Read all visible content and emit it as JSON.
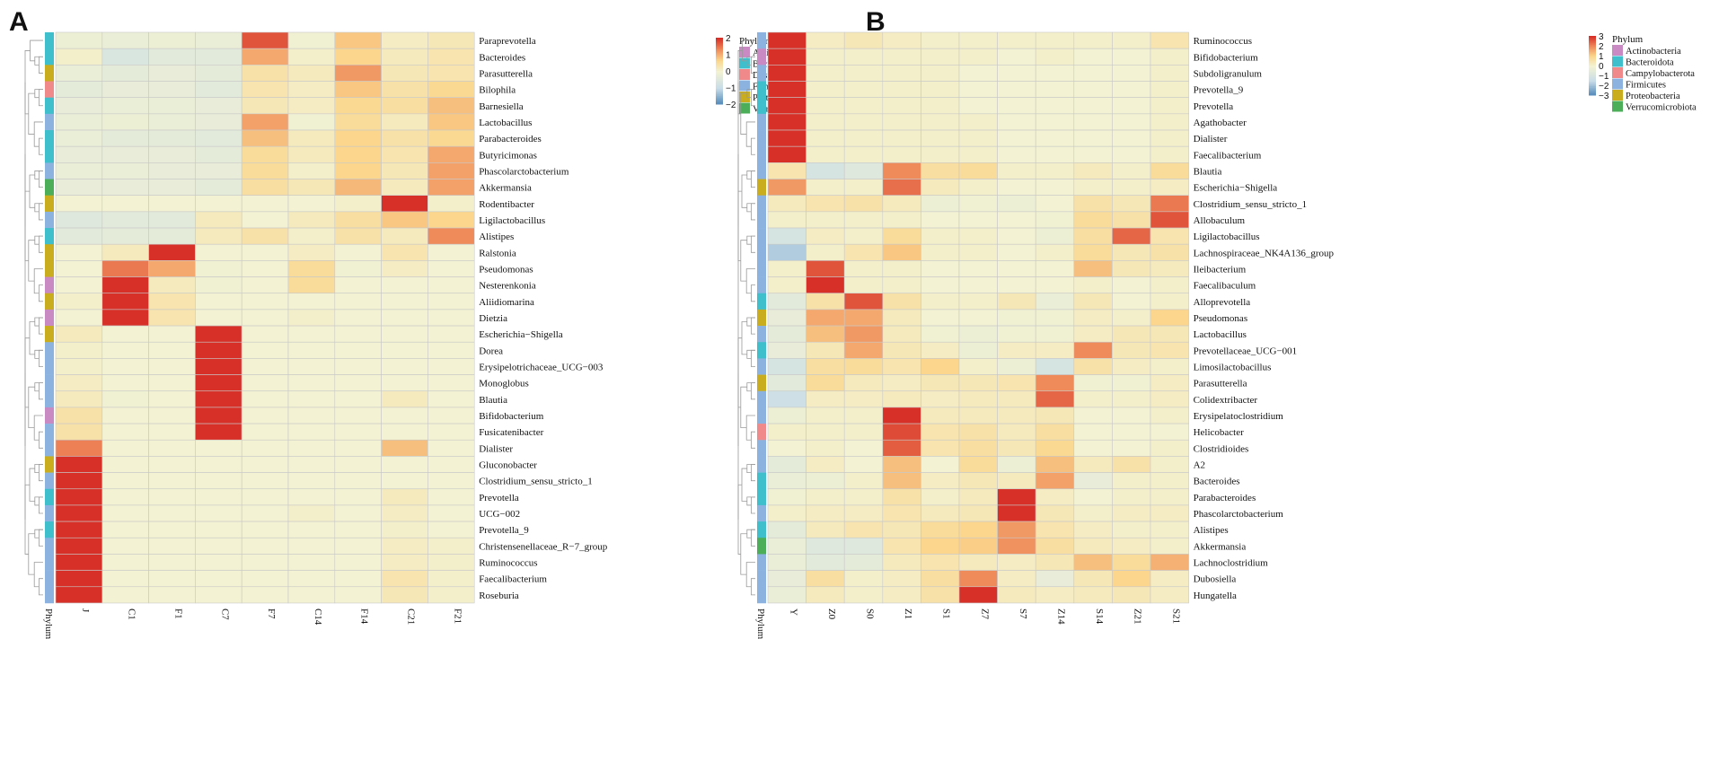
{
  "palette": {
    "low": "#4f86b7",
    "mid_low": "#c8dde8",
    "mid": "#f3f2d2",
    "mid_high": "#fbd68c",
    "high_mid": "#ef8a5a",
    "high": "#d73028",
    "grid": "#c8c8c8",
    "dendro": "#9a9a9a"
  },
  "phylum_colors": {
    "Actinobacteria": "#c98ac3",
    "Bacteroidota": "#3fbfcb",
    "Desulfobacterota": "#f08a8a",
    "Campylobacterota": "#f08a8a",
    "Firmicutes": "#8cb3e0",
    "Proteobacteria": "#c9ad1e",
    "Verrucomicrobiota": "#4cae58"
  },
  "chart_data": [
    {
      "panel": "A",
      "type": "heatmap",
      "phylum_axis_label": "Phylum",
      "columns": [
        "J",
        "C1",
        "F1",
        "C7",
        "F7",
        "C14",
        "F14",
        "C21",
        "F21"
      ],
      "legend": {
        "title": "Phylum",
        "scale_ticks": [
          "2",
          "1",
          "0",
          "−1",
          "−2"
        ],
        "scale_values": [
          2,
          1,
          0,
          -1,
          -2
        ],
        "entries": [
          "Actinobacteria",
          "Bacteroidota",
          "Desulfobacterota",
          "Firmicutes",
          "Proteobacteria",
          "Verrucomicrobiota"
        ],
        "phyla_keys": [
          "Actinobacteria",
          "Bacteroidota",
          "Desulfobacterota",
          "Firmicutes",
          "Proteobacteria",
          "Verrucomicrobiota"
        ]
      },
      "rows": [
        "Paraprevotella",
        "Bacteroides",
        "Parasutterella",
        "Bilophila",
        "Barnesiella",
        "Lactobacillus",
        "Parabacteroides",
        "Butyricimonas",
        "Phascolarctobacterium",
        "Akkermansia",
        "Rodentibacter",
        "Ligilactobacillus",
        "Alistipes",
        "Ralstonia",
        "Pseudomonas",
        "Nesterenkonia",
        "Aliidiomarina",
        "Dietzia",
        "Escherichia−Shigella",
        "Dorea",
        "Erysipelotrichaceae_UCG−003",
        "Monoglobus",
        "Blautia",
        "Bifidobacterium",
        "Fusicatenibacter",
        "Dialister",
        "Gluconobacter",
        "Clostridium_sensu_stricto_1",
        "Prevotella",
        "UCG−002",
        "Prevotella_9",
        "Christensenellaceae_R−7_group",
        "Ruminococcus",
        "Faecalibacterium",
        "Roseburia"
      ],
      "row_phyla": [
        "Bacteroidota",
        "Bacteroidota",
        "Proteobacteria",
        "Desulfobacterota",
        "Bacteroidota",
        "Firmicutes",
        "Bacteroidota",
        "Bacteroidota",
        "Firmicutes",
        "Verrucomicrobiota",
        "Proteobacteria",
        "Firmicutes",
        "Bacteroidota",
        "Proteobacteria",
        "Proteobacteria",
        "Actinobacteria",
        "Proteobacteria",
        "Actinobacteria",
        "Proteobacteria",
        "Firmicutes",
        "Firmicutes",
        "Firmicutes",
        "Firmicutes",
        "Actinobacteria",
        "Firmicutes",
        "Firmicutes",
        "Proteobacteria",
        "Firmicutes",
        "Bacteroidota",
        "Firmicutes",
        "Bacteroidota",
        "Firmicutes",
        "Firmicutes",
        "Firmicutes",
        "Firmicutes"
      ],
      "values": [
        [
          -0.2,
          -0.3,
          -0.2,
          -0.3,
          2.6,
          -0.1,
          1.2,
          0.2,
          0.4
        ],
        [
          0.1,
          -0.9,
          -0.6,
          -0.6,
          1.6,
          0.1,
          1.0,
          0.3,
          0.5
        ],
        [
          -0.3,
          -0.5,
          -0.4,
          -0.5,
          0.6,
          0.3,
          1.8,
          0.4,
          0.5
        ],
        [
          -0.5,
          -0.4,
          -0.4,
          -0.6,
          0.5,
          0.2,
          1.2,
          0.6,
          0.9
        ],
        [
          -0.4,
          -0.3,
          -0.3,
          -0.4,
          0.4,
          0.2,
          0.9,
          0.7,
          1.3
        ],
        [
          -0.3,
          -0.2,
          -0.3,
          -0.4,
          1.7,
          -0.1,
          0.8,
          0.3,
          1.2
        ],
        [
          -0.3,
          -0.5,
          -0.5,
          -0.6,
          1.3,
          0.3,
          1.0,
          0.6,
          0.9
        ],
        [
          -0.4,
          -0.4,
          -0.4,
          -0.5,
          0.8,
          0.3,
          1.0,
          0.5,
          1.6
        ],
        [
          -0.3,
          -0.3,
          -0.4,
          -0.4,
          0.8,
          0.1,
          1.0,
          0.4,
          1.7
        ],
        [
          -0.4,
          -0.4,
          -0.4,
          -0.5,
          0.7,
          0.4,
          1.4,
          0.3,
          1.7
        ],
        [
          0,
          0,
          0,
          0,
          0,
          0,
          0.1,
          3.0,
          0.1
        ],
        [
          -0.7,
          -0.6,
          -0.6,
          0.3,
          0,
          0.3,
          0.7,
          1.2,
          1.0
        ],
        [
          -0.6,
          -0.5,
          -0.5,
          0.3,
          0.6,
          0.1,
          0.6,
          0.3,
          2.0
        ],
        [
          0,
          0.3,
          3.0,
          0,
          0,
          0.2,
          0,
          0.5,
          0
        ],
        [
          0,
          2.2,
          1.6,
          -0.1,
          0,
          0.8,
          -0.1,
          0.2,
          0
        ],
        [
          0,
          3.0,
          0.3,
          -0.1,
          0,
          0.8,
          0,
          0,
          0
        ],
        [
          0.1,
          3.0,
          0.5,
          0,
          0,
          0,
          0,
          0,
          0
        ],
        [
          0,
          3.0,
          0.5,
          0,
          0,
          0.1,
          0,
          0,
          0
        ],
        [
          0.3,
          0,
          0,
          3.0,
          0,
          0,
          0,
          0,
          0
        ],
        [
          0.1,
          0,
          0,
          3.0,
          0,
          0,
          0,
          0,
          0
        ],
        [
          0.1,
          0,
          0,
          3.0,
          0,
          0,
          0,
          0,
          0
        ],
        [
          0.2,
          0,
          0,
          3.0,
          0,
          0,
          0,
          0,
          0
        ],
        [
          0.3,
          -0.1,
          0,
          3.0,
          0,
          0,
          0,
          0.3,
          0
        ],
        [
          0.6,
          0,
          0,
          3.0,
          0,
          0,
          0,
          0,
          0
        ],
        [
          0.6,
          0,
          0,
          3.0,
          0,
          0,
          0,
          0,
          0
        ],
        [
          2.1,
          0,
          0,
          0,
          0,
          0,
          0,
          1.3,
          0
        ],
        [
          3.0,
          0,
          0,
          0,
          0,
          0,
          0,
          0,
          0
        ],
        [
          3.0,
          0,
          0,
          0,
          0,
          0,
          0,
          0,
          0
        ],
        [
          3.0,
          0,
          0,
          0,
          0,
          0,
          0,
          0.3,
          0
        ],
        [
          3.0,
          0,
          0,
          0,
          0,
          0.1,
          0,
          0.2,
          0
        ],
        [
          3.0,
          0,
          0,
          0,
          0,
          0,
          0,
          0.1,
          0
        ],
        [
          3.0,
          0,
          0,
          0,
          0,
          0,
          0,
          0.2,
          0.1
        ],
        [
          3.0,
          0,
          0,
          0,
          0,
          0,
          0,
          0.2,
          0.1
        ],
        [
          3.0,
          0,
          0,
          0,
          0,
          0,
          0,
          0.5,
          0.1
        ],
        [
          3.0,
          0,
          0,
          0,
          0,
          0,
          0,
          0.4,
          0.1
        ]
      ]
    },
    {
      "panel": "B",
      "type": "heatmap",
      "phylum_axis_label": "Phylum",
      "columns": [
        "Y",
        "Z0",
        "S0",
        "Z1",
        "S1",
        "Z7",
        "S7",
        "Z14",
        "S14",
        "Z21",
        "S21"
      ],
      "legend": {
        "title": "Phylum",
        "scale_ticks": [
          "3",
          "2",
          "1",
          "0",
          "−1",
          "−2",
          "−3"
        ],
        "scale_values": [
          3,
          2,
          1,
          0,
          -1,
          -2,
          -3
        ],
        "entries": [
          "Actinobacteria",
          "Bacteroidota",
          "Campylobacterota",
          "Firmicutes",
          "Proteobacteria",
          "Verrucomicrobiota"
        ],
        "phyla_keys": [
          "Actinobacteria",
          "Bacteroidota",
          "Campylobacterota",
          "Firmicutes",
          "Proteobacteria",
          "Verrucomicrobiota"
        ]
      },
      "rows": [
        "Ruminococcus",
        "Bifidobacterium",
        "Subdoligranulum",
        "Prevotella_9",
        "Prevotella",
        "Agathobacter",
        "Dialister",
        "Faecalibacterium",
        "Blautia",
        "Escherichia−Shigella",
        "Clostridium_sensu_stricto_1",
        "Allobaculum",
        "Ligilactobacillus",
        "Lachnospiraceae_NK4A136_group",
        "Ileibacterium",
        "Faecalibaculum",
        "Alloprevotella",
        "Pseudomonas",
        "Lactobacillus",
        "Prevotellaceae_UCG−001",
        "Limosilactobacillus",
        "Parasutterella",
        "Colidextribacter",
        "Erysipelatoclostridium",
        "Helicobacter",
        "Clostridioides",
        "A2",
        "Bacteroides",
        "Parabacteroides",
        "Phascolarctobacterium",
        "Alistipes",
        "Akkermansia",
        "Lachnoclostridium",
        "Dubosiella",
        "Hungatella"
      ],
      "row_phyla": [
        "Firmicutes",
        "Actinobacteria",
        "Firmicutes",
        "Bacteroidota",
        "Bacteroidota",
        "Firmicutes",
        "Firmicutes",
        "Firmicutes",
        "Firmicutes",
        "Proteobacteria",
        "Firmicutes",
        "Firmicutes",
        "Firmicutes",
        "Firmicutes",
        "Firmicutes",
        "Firmicutes",
        "Bacteroidota",
        "Proteobacteria",
        "Firmicutes",
        "Bacteroidota",
        "Firmicutes",
        "Proteobacteria",
        "Firmicutes",
        "Firmicutes",
        "Campylobacterota",
        "Firmicutes",
        "Firmicutes",
        "Bacteroidota",
        "Bacteroidota",
        "Firmicutes",
        "Bacteroidota",
        "Verrucomicrobiota",
        "Firmicutes",
        "Firmicutes",
        "Firmicutes"
      ],
      "values": [
        [
          3.0,
          0.2,
          0.4,
          0.2,
          0.1,
          0.1,
          0.1,
          0.1,
          0.1,
          0.1,
          0.5
        ],
        [
          3.0,
          0.1,
          0.1,
          0.1,
          0.1,
          0.1,
          0,
          0.1,
          0,
          0,
          0.1
        ],
        [
          3.0,
          0.1,
          0.1,
          0.1,
          0.1,
          0,
          0,
          0,
          0,
          0,
          0.1
        ],
        [
          3.0,
          0.1,
          0.1,
          0.1,
          0.1,
          0,
          0,
          0,
          0,
          0,
          0.1
        ],
        [
          3.0,
          0.1,
          0.1,
          0.1,
          0.1,
          0,
          0,
          0,
          0,
          0,
          0.1
        ],
        [
          3.0,
          0.1,
          0.1,
          0.1,
          0.1,
          0.1,
          0,
          0,
          0,
          0,
          0.1
        ],
        [
          3.0,
          0.1,
          0.1,
          0.1,
          0.1,
          0.1,
          0,
          0,
          0,
          0,
          0.1
        ],
        [
          3.0,
          0.1,
          0.1,
          0.1,
          0.1,
          0.1,
          0,
          0,
          0,
          0,
          0.1
        ],
        [
          0.5,
          -1.0,
          -0.7,
          2.0,
          0.7,
          0.8,
          0.1,
          0.1,
          0.3,
          0.1,
          0.8
        ],
        [
          1.8,
          0.1,
          0.1,
          2.3,
          0.3,
          0.1,
          0,
          0,
          0.1,
          0.1,
          0.2
        ],
        [
          0.3,
          0.5,
          0.6,
          0.3,
          -0.2,
          -0.1,
          -0.2,
          0,
          0.6,
          0.4,
          2.2
        ],
        [
          0.1,
          0.1,
          0.1,
          0.1,
          0,
          0,
          0,
          -0.1,
          0.8,
          0.6,
          2.6
        ],
        [
          -1.0,
          0.2,
          0.1,
          0.8,
          0.1,
          0.1,
          0,
          -0.2,
          0.7,
          2.4,
          0.5
        ],
        [
          -1.8,
          0.1,
          0.5,
          1.2,
          0.1,
          0.1,
          0,
          0.1,
          0.8,
          0.4,
          0.6
        ],
        [
          0.1,
          2.6,
          0.1,
          0.1,
          0,
          0,
          0,
          0,
          1.3,
          0.4,
          0.3
        ],
        [
          0.1,
          3.0,
          0.1,
          0.1,
          0,
          0,
          0,
          0,
          0.1,
          0,
          0.1
        ],
        [
          -0.6,
          0.6,
          2.6,
          0.6,
          0.1,
          0.1,
          0.4,
          -0.3,
          0.4,
          0,
          0.1
        ],
        [
          -0.4,
          1.6,
          1.6,
          0.3,
          0,
          0,
          -0.1,
          -0.1,
          0.2,
          0.1,
          1.0
        ],
        [
          -0.5,
          1.3,
          1.8,
          0.3,
          -0.1,
          -0.2,
          -0.1,
          -0.1,
          0.2,
          0.4,
          0.4
        ],
        [
          -0.4,
          0.4,
          1.6,
          0.4,
          0.2,
          -0.2,
          0.2,
          0.2,
          2.0,
          0.4,
          0.5
        ],
        [
          -1.0,
          0.7,
          0.8,
          0.5,
          1.0,
          0.1,
          -0.2,
          -1.0,
          0.6,
          0.2,
          0.1
        ],
        [
          -0.6,
          0.8,
          0.3,
          0.2,
          0.4,
          0.4,
          0.5,
          2.0,
          -0.1,
          -0.1,
          0.2
        ],
        [
          -1.3,
          0.2,
          0.2,
          0.3,
          0.2,
          0.3,
          0.3,
          2.4,
          0.1,
          0.1,
          0.2
        ],
        [
          -0.2,
          0.1,
          0.1,
          3.0,
          0.3,
          0.3,
          0.3,
          0.4,
          0,
          0,
          0.1
        ],
        [
          0.1,
          0.1,
          0.1,
          2.7,
          0.5,
          0.6,
          0.3,
          0.7,
          0,
          0,
          0
        ],
        [
          0,
          0.1,
          0,
          2.5,
          0.5,
          0.7,
          0.4,
          0.9,
          0,
          0,
          0.1
        ],
        [
          -0.5,
          0.2,
          0,
          1.3,
          0,
          0.8,
          -0.2,
          1.3,
          0.3,
          0.6,
          0.1
        ],
        [
          -0.3,
          -0.2,
          0.1,
          1.3,
          0.2,
          0.4,
          0.3,
          1.7,
          -0.4,
          0.1,
          0.1
        ],
        [
          -0.1,
          0.1,
          0.1,
          0.6,
          0.1,
          0.3,
          3.0,
          0.2,
          0,
          0.1,
          0.1
        ],
        [
          0.1,
          0.2,
          0.2,
          0.5,
          0.3,
          0.4,
          3.0,
          0.4,
          0.1,
          0.2,
          0.2
        ],
        [
          -0.5,
          0.3,
          0.5,
          0.4,
          0.8,
          1.0,
          1.8,
          0.5,
          0.2,
          0.1,
          0.1
        ],
        [
          -0.3,
          -0.7,
          -0.7,
          0.5,
          1.0,
          1.1,
          1.9,
          0.7,
          0.3,
          0.2,
          0.1
        ],
        [
          -0.3,
          -0.6,
          -0.5,
          0.3,
          0.5,
          0.3,
          0.2,
          0.4,
          1.3,
          0.8,
          1.5
        ],
        [
          -0.4,
          0.7,
          0.1,
          0.2,
          0.7,
          2.0,
          0.2,
          -0.4,
          0.4,
          1.0,
          0.2
        ],
        [
          -0.3,
          0.3,
          0.1,
          0.2,
          0.6,
          3.0,
          0.3,
          0.2,
          0.3,
          0.4,
          0.2
        ]
      ]
    }
  ]
}
